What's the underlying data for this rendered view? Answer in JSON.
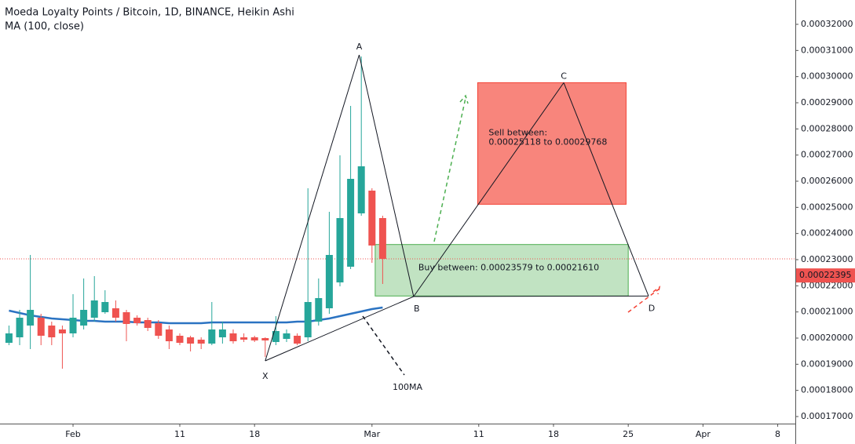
{
  "chart_data": {
    "type": "candlestick",
    "title": "Moeda Loyalty Points / Bitcoin, 1D, BINANCE, Heikin Ashi",
    "subtitle": "MA (100, close)",
    "xlim": [
      -6.84,
      67.65
    ],
    "xticks": [
      {
        "value": 0,
        "label": "Feb"
      },
      {
        "value": 10,
        "label": "11"
      },
      {
        "value": 17,
        "label": "18"
      },
      {
        "value": 28,
        "label": "Mar"
      },
      {
        "value": 38,
        "label": "11"
      },
      {
        "value": 45,
        "label": "18"
      },
      {
        "value": 52,
        "label": "25"
      },
      {
        "value": 59,
        "label": "Apr"
      },
      {
        "value": 66,
        "label": "8"
      }
    ],
    "ylim": [
      0.0001673,
      0.0003293
    ],
    "yticks": [
      {
        "value": 0.00017,
        "label": "0.00017000"
      },
      {
        "value": 0.00018,
        "label": "0.00018000"
      },
      {
        "value": 0.00019,
        "label": "0.00019000"
      },
      {
        "value": 0.0002,
        "label": "0.00020000"
      },
      {
        "value": 0.00021,
        "label": "0.00021000"
      },
      {
        "value": 0.00022,
        "label": "0.00022000"
      },
      {
        "value": 0.00023,
        "label": "0.00023000"
      },
      {
        "value": 0.00024,
        "label": "0.00024000"
      },
      {
        "value": 0.00025,
        "label": "0.00025000"
      },
      {
        "value": 0.00026,
        "label": "0.00026000"
      },
      {
        "value": 0.00027,
        "label": "0.00027000"
      },
      {
        "value": 0.00028,
        "label": "0.00028000"
      },
      {
        "value": 0.00029,
        "label": "0.00029000"
      },
      {
        "value": 0.0003,
        "label": "0.00030000"
      },
      {
        "value": 0.00031,
        "label": "0.00031000"
      },
      {
        "value": 0.00032,
        "label": "0.00032000"
      }
    ],
    "up_color": "#26a69a",
    "down_color": "#ef5350",
    "x": [
      -6,
      -5,
      -4,
      -3,
      -2,
      -1,
      0,
      1,
      2,
      3,
      4,
      5,
      6,
      7,
      8,
      9,
      10,
      11,
      12,
      13,
      14,
      15,
      16,
      17,
      18,
      19,
      20,
      21,
      22,
      23,
      24,
      25,
      26,
      27,
      28,
      29
    ],
    "open": [
      0.0001982,
      0.0002003,
      0.0002048,
      0.0002078,
      0.0002048,
      0.0002033,
      0.0002018,
      0.0002048,
      0.0002078,
      0.0002099,
      0.0002114,
      0.0002099,
      0.0002078,
      0.0002069,
      0.0002057,
      0.0002033,
      0.0002009,
      0.0002003,
      0.0001994,
      0.0001979,
      0.0002003,
      0.0002018,
      0.0002003,
      0.0002003,
      0.0002,
      0.0001985,
      0.0001997,
      0.0002009,
      0.0002003,
      0.0002063,
      0.0002114,
      0.0002213,
      0.0002273,
      0.0002477,
      0.0002564,
      0.0002459
    ],
    "high": [
      0.0002048,
      0.0002108,
      0.0002318,
      0.0002093,
      0.0002063,
      0.0002048,
      0.0002168,
      0.0002228,
      0.0002237,
      0.0002183,
      0.0002144,
      0.0002108,
      0.0002087,
      0.0002078,
      0.0002069,
      0.0002048,
      0.0002018,
      0.0002009,
      0.0002003,
      0.0002138,
      0.0002063,
      0.0002033,
      0.0002018,
      0.0002009,
      0.0002003,
      0.0002084,
      0.0002033,
      0.0002018,
      0.0002573,
      0.0002228,
      0.0002483,
      0.0002699,
      0.0002888,
      0.0003077,
      0.0002573,
      0.0002468
    ],
    "low": [
      0.0001973,
      0.0001973,
      0.0001958,
      0.0001973,
      0.0001973,
      0.0001883,
      0.0002003,
      0.0002033,
      0.0002063,
      0.0002093,
      0.0002063,
      0.0001988,
      0.0002048,
      0.0002027,
      0.0001997,
      0.0001958,
      0.0001973,
      0.0001949,
      0.0001958,
      0.0001973,
      0.0001979,
      0.0001979,
      0.0001985,
      0.0001985,
      0.0001928,
      0.0001973,
      0.0001985,
      0.0001973,
      0.0001988,
      0.0002048,
      0.0002093,
      0.0002198,
      0.0002264,
      0.0002468,
      0.0002288,
      0.0002207
    ],
    "close": [
      0.0002018,
      0.0002078,
      0.0002108,
      0.0002009,
      0.0002003,
      0.0002018,
      0.0002078,
      0.0002108,
      0.0002144,
      0.0002138,
      0.0002078,
      0.0002054,
      0.0002057,
      0.0002039,
      0.0002009,
      0.0001988,
      0.0001982,
      0.0001979,
      0.0001979,
      0.0002033,
      0.0002033,
      0.0001988,
      0.0001994,
      0.0001991,
      0.0001991,
      0.0002027,
      0.0002018,
      0.0001979,
      0.0002138,
      0.0002153,
      0.0002318,
      0.0002459,
      0.0002609,
      0.0002657,
      0.0002354,
      0.0002303
    ],
    "ma": {
      "color": "#2b73c2",
      "values": [
        0.0002105,
        0.0002096,
        0.0002087,
        0.0002081,
        0.0002075,
        0.0002072,
        0.0002069,
        0.0002066,
        0.0002066,
        0.0002063,
        0.0002063,
        0.0002063,
        0.000206,
        0.000206,
        0.000206,
        0.0002057,
        0.0002057,
        0.0002057,
        0.0002057,
        0.000206,
        0.000206,
        0.000206,
        0.000206,
        0.000206,
        0.000206,
        0.000206,
        0.000206,
        0.0002063,
        0.0002063,
        0.0002069,
        0.0002075,
        0.0002084,
        0.0002093,
        0.0002102,
        0.0002111,
        0.0002117
      ]
    },
    "last_price": {
      "value": 0.00022395,
      "label": "0.00022395"
    },
    "pattern": [
      {
        "label": "X",
        "x": 18.0,
        "y": 0.0001913
      },
      {
        "label": "A",
        "x": 26.8,
        "y": 0.0003083
      },
      {
        "label": "B",
        "x": 31.9,
        "y": 0.0002159
      },
      {
        "label": "C",
        "x": 45.96,
        "y": 0.00029768
      },
      {
        "label": "D",
        "x": 53.9,
        "y": 0.0002161
      }
    ],
    "sell_zone": {
      "text": [
        "Sell between:",
        "0.00025118 to 0.00029768"
      ],
      "x": [
        37.9,
        51.8
      ],
      "y": [
        0.00025118,
        0.00029768
      ],
      "color": "#f44336"
    },
    "buy_zone": {
      "text": "Buy between: 0.00023579 to 0.00021610",
      "x": [
        28.3,
        52.0
      ],
      "y": [
        0.0002161,
        0.00023579
      ],
      "color": "#4caf50"
    },
    "ma_note": "100MA"
  }
}
